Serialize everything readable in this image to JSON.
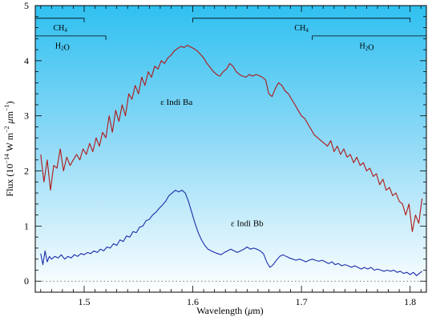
{
  "chart_data": {
    "type": "line",
    "xlabel": "Wavelength (μm)",
    "ylabel": "Flux (10^-14 W m^-2 μm^-1)",
    "xlim": [
      1.455,
      1.815
    ],
    "ylim": [
      -0.2,
      5
    ],
    "x_ticks": [
      1.5,
      1.6,
      1.7,
      1.8
    ],
    "y_ticks": [
      0,
      1,
      2,
      3,
      4,
      5
    ],
    "grid": false,
    "zero_line": 0,
    "background": "gradient sky-blue (top) to white (bottom)",
    "series": [
      {
        "label": "ε Indi Ba",
        "color": "#b01818",
        "label_position": {
          "x": 1.585,
          "y": 3.2
        },
        "points": [
          [
            1.46,
            2.3
          ],
          [
            1.463,
            1.8
          ],
          [
            1.466,
            2.2
          ],
          [
            1.469,
            1.65
          ],
          [
            1.472,
            2.1
          ],
          [
            1.475,
            2.05
          ],
          [
            1.478,
            2.4
          ],
          [
            1.481,
            2.0
          ],
          [
            1.484,
            2.25
          ],
          [
            1.487,
            2.1
          ],
          [
            1.49,
            2.2
          ],
          [
            1.493,
            2.3
          ],
          [
            1.496,
            2.2
          ],
          [
            1.499,
            2.4
          ],
          [
            1.502,
            2.3
          ],
          [
            1.505,
            2.5
          ],
          [
            1.508,
            2.35
          ],
          [
            1.511,
            2.6
          ],
          [
            1.514,
            2.45
          ],
          [
            1.517,
            2.7
          ],
          [
            1.52,
            2.6
          ],
          [
            1.523,
            3.0
          ],
          [
            1.526,
            2.7
          ],
          [
            1.529,
            3.1
          ],
          [
            1.532,
            2.9
          ],
          [
            1.535,
            3.2
          ],
          [
            1.538,
            3.0
          ],
          [
            1.541,
            3.4
          ],
          [
            1.544,
            3.3
          ],
          [
            1.547,
            3.55
          ],
          [
            1.55,
            3.4
          ],
          [
            1.553,
            3.7
          ],
          [
            1.556,
            3.55
          ],
          [
            1.559,
            3.8
          ],
          [
            1.562,
            3.7
          ],
          [
            1.565,
            3.9
          ],
          [
            1.568,
            3.85
          ],
          [
            1.571,
            4.0
          ],
          [
            1.574,
            3.95
          ],
          [
            1.577,
            4.05
          ],
          [
            1.58,
            4.1
          ],
          [
            1.583,
            4.18
          ],
          [
            1.586,
            4.22
          ],
          [
            1.589,
            4.26
          ],
          [
            1.592,
            4.24
          ],
          [
            1.595,
            4.28
          ],
          [
            1.598,
            4.25
          ],
          [
            1.601,
            4.22
          ],
          [
            1.604,
            4.18
          ],
          [
            1.607,
            4.12
          ],
          [
            1.61,
            4.05
          ],
          [
            1.613,
            3.95
          ],
          [
            1.616,
            3.88
          ],
          [
            1.619,
            3.8
          ],
          [
            1.622,
            3.75
          ],
          [
            1.625,
            3.72
          ],
          [
            1.628,
            3.8
          ],
          [
            1.631,
            3.85
          ],
          [
            1.634,
            3.95
          ],
          [
            1.637,
            3.9
          ],
          [
            1.64,
            3.8
          ],
          [
            1.643,
            3.75
          ],
          [
            1.646,
            3.72
          ],
          [
            1.649,
            3.7
          ],
          [
            1.652,
            3.75
          ],
          [
            1.655,
            3.72
          ],
          [
            1.658,
            3.75
          ],
          [
            1.661,
            3.73
          ],
          [
            1.664,
            3.7
          ],
          [
            1.667,
            3.65
          ],
          [
            1.67,
            3.4
          ],
          [
            1.673,
            3.35
          ],
          [
            1.676,
            3.5
          ],
          [
            1.679,
            3.6
          ],
          [
            1.682,
            3.55
          ],
          [
            1.685,
            3.45
          ],
          [
            1.688,
            3.4
          ],
          [
            1.691,
            3.3
          ],
          [
            1.694,
            3.2
          ],
          [
            1.697,
            3.1
          ],
          [
            1.7,
            3.0
          ],
          [
            1.703,
            2.95
          ],
          [
            1.706,
            2.85
          ],
          [
            1.709,
            2.75
          ],
          [
            1.712,
            2.65
          ],
          [
            1.715,
            2.6
          ],
          [
            1.718,
            2.55
          ],
          [
            1.721,
            2.5
          ],
          [
            1.724,
            2.45
          ],
          [
            1.727,
            2.55
          ],
          [
            1.73,
            2.35
          ],
          [
            1.733,
            2.45
          ],
          [
            1.736,
            2.3
          ],
          [
            1.739,
            2.4
          ],
          [
            1.742,
            2.25
          ],
          [
            1.745,
            2.3
          ],
          [
            1.748,
            2.15
          ],
          [
            1.751,
            2.25
          ],
          [
            1.754,
            2.1
          ],
          [
            1.757,
            2.15
          ],
          [
            1.76,
            2.0
          ],
          [
            1.763,
            2.05
          ],
          [
            1.766,
            1.9
          ],
          [
            1.769,
            1.95
          ],
          [
            1.772,
            1.75
          ],
          [
            1.775,
            1.85
          ],
          [
            1.778,
            1.65
          ],
          [
            1.781,
            1.7
          ],
          [
            1.784,
            1.55
          ],
          [
            1.787,
            1.6
          ],
          [
            1.79,
            1.45
          ],
          [
            1.793,
            1.4
          ],
          [
            1.796,
            1.2
          ],
          [
            1.799,
            1.4
          ],
          [
            1.802,
            0.9
          ],
          [
            1.805,
            1.2
          ],
          [
            1.808,
            1.05
          ],
          [
            1.811,
            1.5
          ]
        ]
      },
      {
        "label": "ε Indi Bb",
        "color": "#1a2eaa",
        "label_position": {
          "x": 1.65,
          "y": 1.0
        },
        "points": [
          [
            1.46,
            0.5
          ],
          [
            1.462,
            0.3
          ],
          [
            1.464,
            0.55
          ],
          [
            1.466,
            0.35
          ],
          [
            1.468,
            0.45
          ],
          [
            1.47,
            0.4
          ],
          [
            1.473,
            0.45
          ],
          [
            1.476,
            0.42
          ],
          [
            1.479,
            0.48
          ],
          [
            1.482,
            0.4
          ],
          [
            1.485,
            0.45
          ],
          [
            1.488,
            0.42
          ],
          [
            1.491,
            0.48
          ],
          [
            1.494,
            0.45
          ],
          [
            1.497,
            0.5
          ],
          [
            1.5,
            0.48
          ],
          [
            1.503,
            0.52
          ],
          [
            1.506,
            0.5
          ],
          [
            1.509,
            0.55
          ],
          [
            1.512,
            0.52
          ],
          [
            1.515,
            0.58
          ],
          [
            1.518,
            0.55
          ],
          [
            1.521,
            0.62
          ],
          [
            1.524,
            0.6
          ],
          [
            1.527,
            0.68
          ],
          [
            1.53,
            0.65
          ],
          [
            1.533,
            0.75
          ],
          [
            1.536,
            0.72
          ],
          [
            1.539,
            0.82
          ],
          [
            1.542,
            0.8
          ],
          [
            1.545,
            0.9
          ],
          [
            1.548,
            0.88
          ],
          [
            1.551,
            0.98
          ],
          [
            1.554,
            1.0
          ],
          [
            1.557,
            1.1
          ],
          [
            1.56,
            1.12
          ],
          [
            1.563,
            1.2
          ],
          [
            1.566,
            1.25
          ],
          [
            1.569,
            1.32
          ],
          [
            1.572,
            1.38
          ],
          [
            1.575,
            1.45
          ],
          [
            1.578,
            1.55
          ],
          [
            1.581,
            1.6
          ],
          [
            1.584,
            1.65
          ],
          [
            1.587,
            1.62
          ],
          [
            1.59,
            1.65
          ],
          [
            1.593,
            1.6
          ],
          [
            1.596,
            1.45
          ],
          [
            1.599,
            1.25
          ],
          [
            1.602,
            1.05
          ],
          [
            1.605,
            0.88
          ],
          [
            1.608,
            0.75
          ],
          [
            1.611,
            0.65
          ],
          [
            1.614,
            0.58
          ],
          [
            1.617,
            0.55
          ],
          [
            1.62,
            0.52
          ],
          [
            1.623,
            0.5
          ],
          [
            1.626,
            0.48
          ],
          [
            1.629,
            0.52
          ],
          [
            1.632,
            0.55
          ],
          [
            1.635,
            0.58
          ],
          [
            1.638,
            0.55
          ],
          [
            1.641,
            0.52
          ],
          [
            1.644,
            0.55
          ],
          [
            1.647,
            0.58
          ],
          [
            1.65,
            0.62
          ],
          [
            1.653,
            0.58
          ],
          [
            1.656,
            0.6
          ],
          [
            1.659,
            0.58
          ],
          [
            1.662,
            0.55
          ],
          [
            1.665,
            0.5
          ],
          [
            1.668,
            0.35
          ],
          [
            1.671,
            0.25
          ],
          [
            1.674,
            0.3
          ],
          [
            1.677,
            0.38
          ],
          [
            1.68,
            0.45
          ],
          [
            1.683,
            0.48
          ],
          [
            1.686,
            0.45
          ],
          [
            1.689,
            0.42
          ],
          [
            1.692,
            0.4
          ],
          [
            1.695,
            0.38
          ],
          [
            1.698,
            0.4
          ],
          [
            1.701,
            0.38
          ],
          [
            1.704,
            0.35
          ],
          [
            1.707,
            0.38
          ],
          [
            1.71,
            0.4
          ],
          [
            1.713,
            0.38
          ],
          [
            1.716,
            0.36
          ],
          [
            1.719,
            0.38
          ],
          [
            1.722,
            0.35
          ],
          [
            1.725,
            0.32
          ],
          [
            1.728,
            0.35
          ],
          [
            1.731,
            0.3
          ],
          [
            1.734,
            0.32
          ],
          [
            1.737,
            0.28
          ],
          [
            1.74,
            0.3
          ],
          [
            1.743,
            0.28
          ],
          [
            1.746,
            0.25
          ],
          [
            1.749,
            0.28
          ],
          [
            1.752,
            0.25
          ],
          [
            1.755,
            0.22
          ],
          [
            1.758,
            0.25
          ],
          [
            1.761,
            0.22
          ],
          [
            1.764,
            0.25
          ],
          [
            1.767,
            0.2
          ],
          [
            1.77,
            0.22
          ],
          [
            1.773,
            0.2
          ],
          [
            1.776,
            0.18
          ],
          [
            1.779,
            0.2
          ],
          [
            1.782,
            0.18
          ],
          [
            1.785,
            0.2
          ],
          [
            1.788,
            0.16
          ],
          [
            1.791,
            0.18
          ],
          [
            1.794,
            0.14
          ],
          [
            1.797,
            0.16
          ],
          [
            1.8,
            0.12
          ],
          [
            1.803,
            0.16
          ],
          [
            1.806,
            0.1
          ],
          [
            1.809,
            0.15
          ],
          [
            1.811,
            0.18
          ]
        ]
      }
    ],
    "annotations": [
      {
        "label": "CH4",
        "x_start": 1.455,
        "x_end": 1.5,
        "y": 4.77,
        "label_x": 1.478,
        "label_y": 4.55
      },
      {
        "label": "H2O",
        "x_start": 1.455,
        "x_end": 1.52,
        "y": 4.45,
        "label_x": 1.48,
        "label_y": 4.22
      },
      {
        "label": "CH4",
        "x_start": 1.6,
        "x_end": 1.8,
        "y": 4.77,
        "label_x": 1.7,
        "label_y": 4.55
      },
      {
        "label": "H2O",
        "x_start": 1.71,
        "x_end": 1.815,
        "y": 4.45,
        "label_x": 1.76,
        "label_y": 4.22
      }
    ]
  }
}
